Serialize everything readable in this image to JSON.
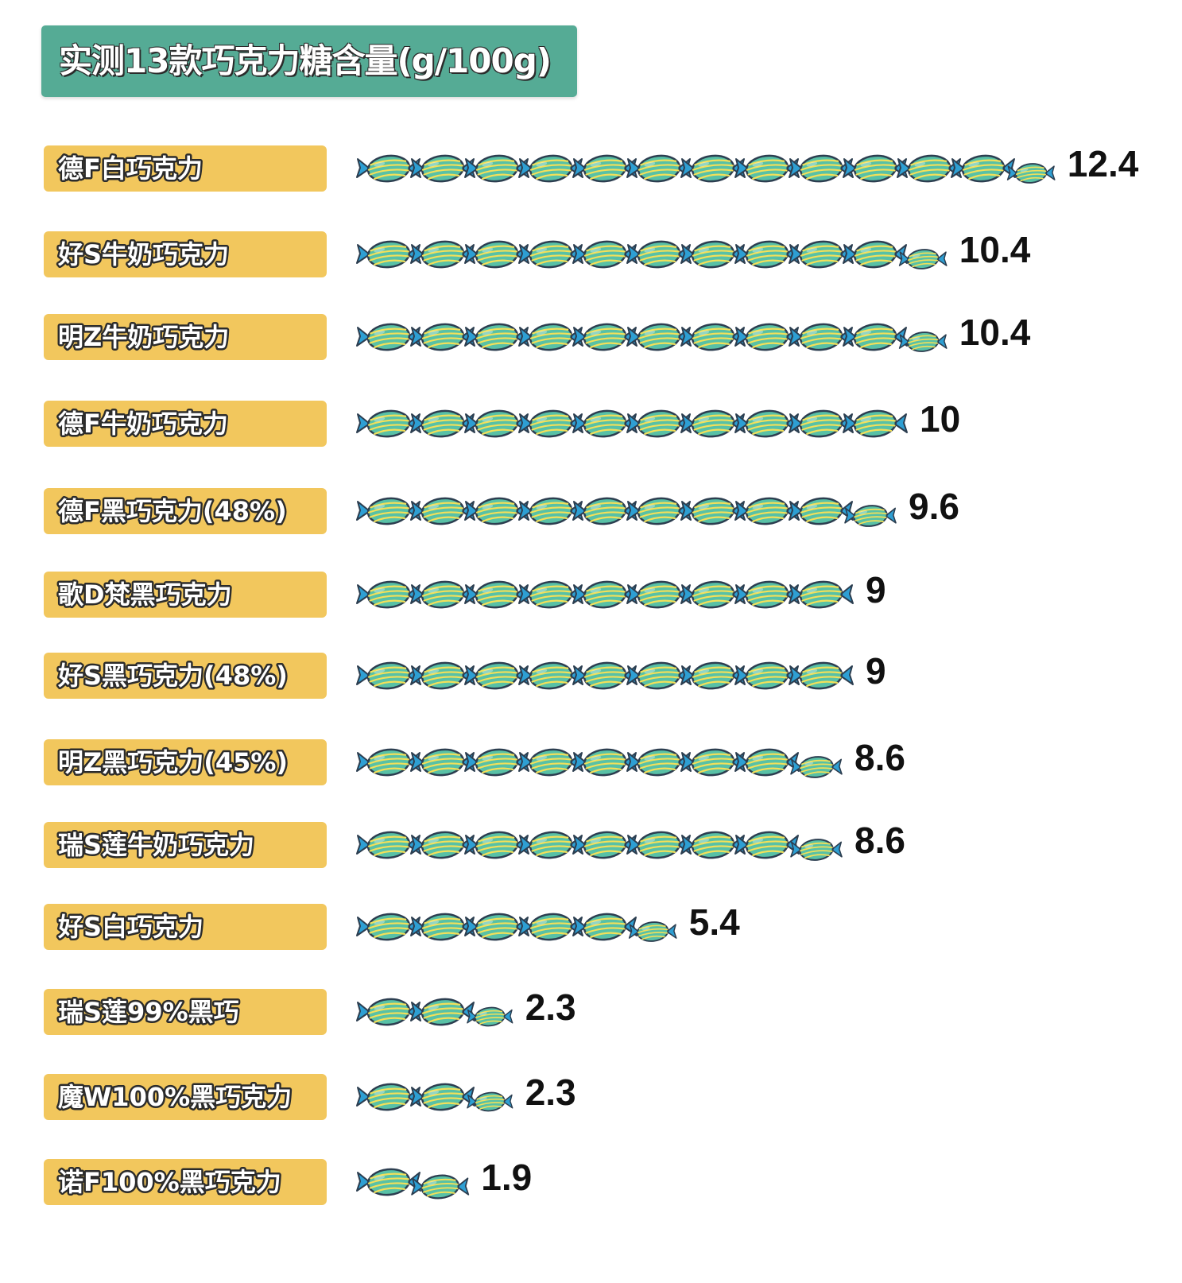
{
  "title": "实测13款巧克力糖含量(g/100g)",
  "chart_data": {
    "type": "bar",
    "title": "实测13款巧克力糖含量(g/100g)",
    "unit": "g/100g",
    "categories": [
      "德F白巧克力",
      "好S牛奶巧克力",
      "明Z牛奶巧克力",
      "德F牛奶巧克力",
      "德F黑巧克力(48%)",
      "歌D梵黑巧克力",
      "好S黑巧克力(48%)",
      "明Z黑巧克力(45%)",
      "瑞S莲牛奶巧克力",
      "好S白巧克力",
      "瑞S莲99%黑巧",
      "魔W100%黑巧克力",
      "诺F100%黑巧克力"
    ],
    "values": [
      12.4,
      10.4,
      10.4,
      10,
      9.6,
      9,
      9,
      8.6,
      8.6,
      5.4,
      2.3,
      2.3,
      1.9
    ],
    "value_labels": [
      "12.4",
      "10.4",
      "10.4",
      "10",
      "9.6",
      "9",
      "9",
      "8.6",
      "8.6",
      "5.4",
      "2.3",
      "2.3",
      "1.9"
    ],
    "mark": "candy-icon",
    "colors": {
      "title_bg": "#55ab95",
      "label_bg": "#f2c75d",
      "candy_body": "#58c1a6",
      "candy_stripe": "#f2e05a",
      "candy_wrapper": "#2e9fd3",
      "outline": "#2c3e50"
    }
  }
}
